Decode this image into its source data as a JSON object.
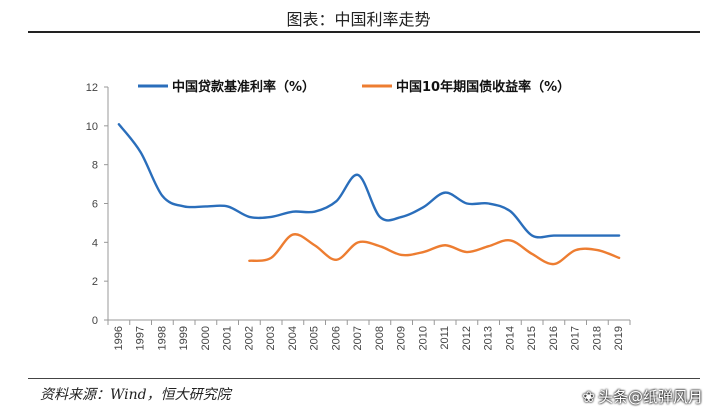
{
  "header": {
    "title": "图表：中国利率走势"
  },
  "footer": {
    "source": "资料来源：Wind，恒大研究院",
    "watermark": "头条@纸弹风月",
    "watermark_icon": "wechat-icon"
  },
  "chart_data": {
    "type": "line",
    "title": "",
    "xlabel": "",
    "ylabel": "",
    "x": [
      1996,
      1997,
      1998,
      1999,
      2000,
      2001,
      2002,
      2003,
      2004,
      2005,
      2006,
      2007,
      2008,
      2009,
      2010,
      2011,
      2012,
      2013,
      2014,
      2015,
      2016,
      2017,
      2018,
      2019
    ],
    "ylim": [
      0,
      12
    ],
    "yticks": [
      0,
      2,
      4,
      6,
      8,
      10,
      12
    ],
    "grid": false,
    "legend_position": "top",
    "series": [
      {
        "name": "中国贷款基准利率（%）",
        "color": "#2a6ebb",
        "points": [
          [
            1996,
            10.08
          ],
          [
            1997,
            8.64
          ],
          [
            1998,
            6.39
          ],
          [
            1999,
            5.85
          ],
          [
            2000,
            5.85
          ],
          [
            2001,
            5.85
          ],
          [
            2002,
            5.31
          ],
          [
            2003,
            5.31
          ],
          [
            2004,
            5.58
          ],
          [
            2005,
            5.58
          ],
          [
            2006,
            6.12
          ],
          [
            2007,
            7.47
          ],
          [
            2008,
            5.31
          ],
          [
            2009,
            5.31
          ],
          [
            2010,
            5.81
          ],
          [
            2011,
            6.56
          ],
          [
            2012,
            6.0
          ],
          [
            2013,
            6.0
          ],
          [
            2014,
            5.6
          ],
          [
            2015,
            4.35
          ],
          [
            2016,
            4.35
          ],
          [
            2017,
            4.35
          ],
          [
            2018,
            4.35
          ],
          [
            2019,
            4.35
          ]
        ]
      },
      {
        "name": "中国10年期国债收益率（%）",
        "color": "#ed7d31",
        "points": [
          [
            2002,
            3.05
          ],
          [
            2003,
            3.2
          ],
          [
            2004,
            4.4
          ],
          [
            2005,
            3.85
          ],
          [
            2006,
            3.1
          ],
          [
            2007,
            4.0
          ],
          [
            2008,
            3.8
          ],
          [
            2009,
            3.35
          ],
          [
            2010,
            3.5
          ],
          [
            2011,
            3.85
          ],
          [
            2012,
            3.5
          ],
          [
            2013,
            3.8
          ],
          [
            2014,
            4.1
          ],
          [
            2015,
            3.4
          ],
          [
            2016,
            2.88
          ],
          [
            2017,
            3.6
          ],
          [
            2018,
            3.6
          ],
          [
            2019,
            3.2
          ]
        ]
      }
    ]
  }
}
